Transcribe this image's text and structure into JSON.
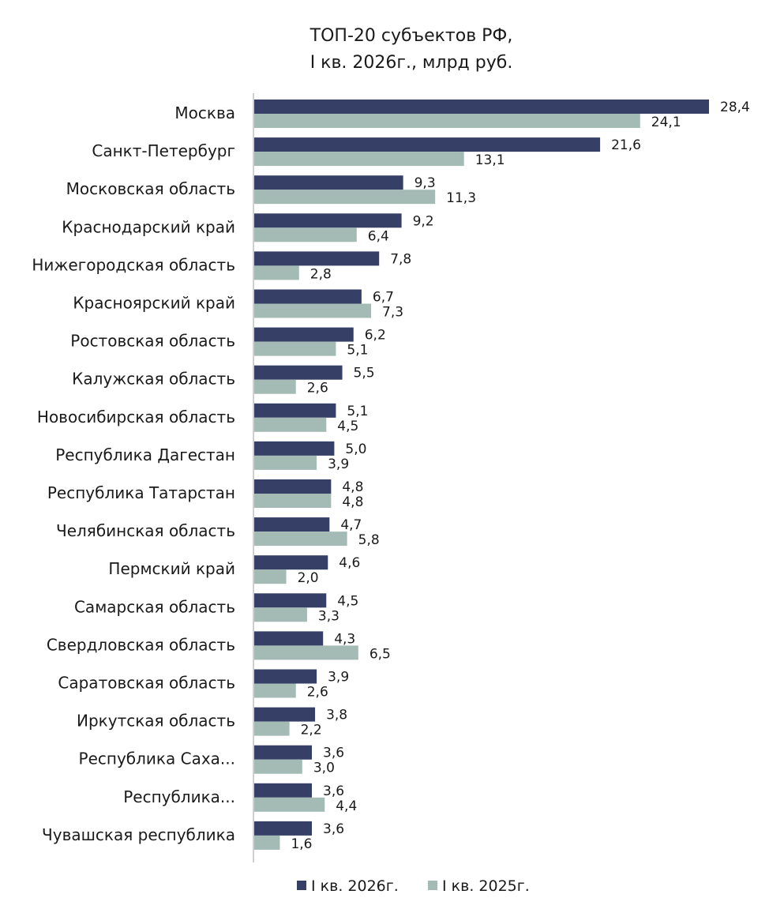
{
  "chart_data": {
    "type": "bar",
    "orientation": "horizontal",
    "title": "ТОП-20 субъектов РФ,\nI кв. 2026г., млрд руб.",
    "categories": [
      "Москва",
      "Санкт-Петербург",
      "Московская область",
      "Краснодарский край",
      "Нижегородская область",
      "Красноярский край",
      "Ростовская область",
      "Калужская область",
      "Новосибирская область",
      "Республика Дагестан",
      "Республика Татарстан",
      "Челябинская область",
      "Пермский край",
      "Самарская область",
      "Свердловская область",
      "Саратовская область",
      "Иркутская область",
      "Республика Саха...",
      "Республика...",
      "Чувашская республика"
    ],
    "series": [
      {
        "name": "I кв. 2026г.",
        "color": "#363f66",
        "values": [
          28.4,
          21.6,
          9.3,
          9.2,
          7.8,
          6.7,
          6.2,
          5.5,
          5.1,
          5.0,
          4.8,
          4.7,
          4.6,
          4.5,
          4.3,
          3.9,
          3.8,
          3.6,
          3.6,
          3.6
        ],
        "labels": [
          "28,4",
          "21,6",
          "9,3",
          "9,2",
          "7,8",
          "6,7",
          "6,2",
          "5,5",
          "5,1",
          "5,0",
          "4,8",
          "4,7",
          "4,6",
          "4,5",
          "4,3",
          "3,9",
          "3,8",
          "3,6",
          "3,6",
          "3,6"
        ]
      },
      {
        "name": "I кв. 2025г.",
        "color": "#a4bbb5",
        "values": [
          24.1,
          13.1,
          11.3,
          6.4,
          2.8,
          7.3,
          5.1,
          2.6,
          4.5,
          3.9,
          4.8,
          5.8,
          2.0,
          3.3,
          6.5,
          2.6,
          2.2,
          3.0,
          4.4,
          1.6
        ],
        "labels": [
          "24,1",
          "13,1",
          "11,3",
          "6,4",
          "2,8",
          "7,3",
          "5,1",
          "2,6",
          "4,5",
          "3,9",
          "4,8",
          "5,8",
          "2,0",
          "3,3",
          "6,5",
          "2,6",
          "2,2",
          "3,0",
          "4,4",
          "1,6"
        ]
      }
    ],
    "xlim": [
      0,
      28.4
    ],
    "grid": false,
    "legend": "bottom-center",
    "axis_color": "#bfbfbf"
  }
}
